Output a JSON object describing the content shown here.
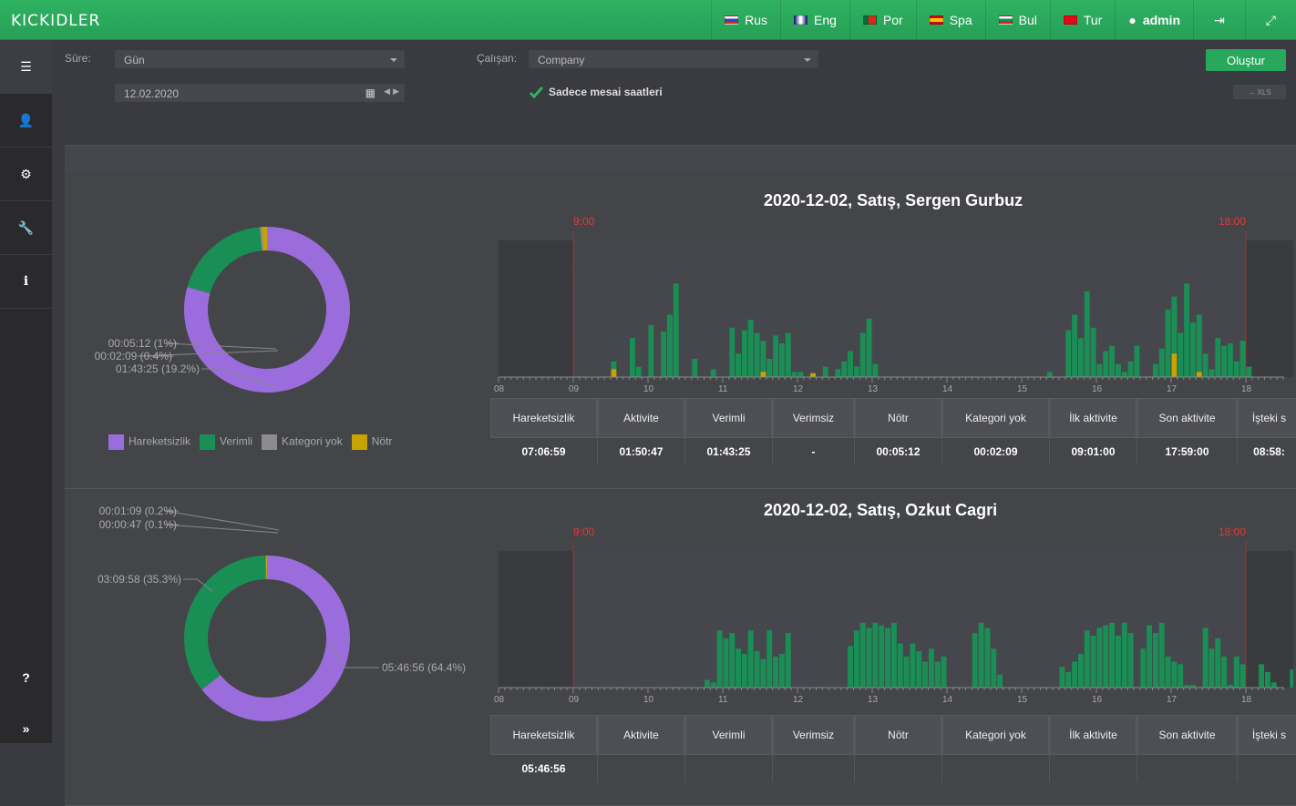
{
  "app": {
    "logo": "KICKIDLER"
  },
  "nav": {
    "languages": [
      {
        "label": "Rus",
        "flag": "ru"
      },
      {
        "label": "Eng",
        "flag": "gb"
      },
      {
        "label": "Por",
        "flag": "pt"
      },
      {
        "label": "Spa",
        "flag": "es"
      },
      {
        "label": "Bul",
        "flag": "bg"
      },
      {
        "label": "Tur",
        "flag": "tr"
      }
    ],
    "user": "admin",
    "logout_icon": "logout-icon",
    "fullscreen_icon": "expand-icon"
  },
  "sidebar": {
    "items": [
      {
        "icon": "list-icon",
        "glyph": "☰"
      },
      {
        "icon": "user-icon",
        "glyph": "👤"
      },
      {
        "icon": "gears-icon",
        "glyph": "⚙"
      },
      {
        "icon": "wrench-icon",
        "glyph": "🔧"
      },
      {
        "icon": "info-icon",
        "glyph": "i"
      }
    ],
    "bottom": [
      {
        "icon": "help-icon",
        "glyph": "?"
      },
      {
        "icon": "expand-sidebar-icon",
        "glyph": "»"
      }
    ]
  },
  "filters": {
    "period_label": "Süre:",
    "period_value": "Gün",
    "date_value": "12.02.2020",
    "employee_label": "Çalışan:",
    "employee_value": "Company",
    "work_hours_only": "Sadece mesai saatleri",
    "create_button": "Oluştur",
    "xls_button": "→ XLS"
  },
  "colors": {
    "idle": "#9b6ddc",
    "productive": "#1a8f55",
    "no_category": "#8c8c8c",
    "neutral": "#c9a400",
    "marker": "#e53935"
  },
  "legend": [
    {
      "label": "Hareketsizlik",
      "color": "#9b6ddc"
    },
    {
      "label": "Verimli",
      "color": "#1a8f55"
    },
    {
      "label": "Kategori yok",
      "color": "#8c8c8c"
    },
    {
      "label": "Nötr",
      "color": "#c9a400"
    }
  ],
  "stat_headers": [
    "Hareketsizlik",
    "Aktivite",
    "Verimli",
    "Verimsiz",
    "Nötr",
    "Kategori yok",
    "İlk aktivite",
    "Son aktivite",
    "İşteki s"
  ],
  "timeline": {
    "ticks": [
      "08",
      "09",
      "10",
      "11",
      "12",
      "13",
      "14",
      "15",
      "16",
      "17",
      "18"
    ],
    "start_marker": "9:00",
    "end_marker": "18:00"
  },
  "reports": [
    {
      "title": "2020-12-02, Satış, Sergen Gurbuz",
      "donut": {
        "slices": [
          {
            "label": "07:06:59 (79.4%)",
            "pct": 79.4,
            "color": "#9b6ddc"
          },
          {
            "label": "01:43:25 (19.2%)",
            "pct": 19.2,
            "color": "#1a8f55"
          },
          {
            "label": "00:02:09 (0.4%)",
            "pct": 0.4,
            "color": "#8c8c8c"
          },
          {
            "label": "00:05:12 (1%)",
            "pct": 1.0,
            "color": "#c9a400"
          }
        ]
      },
      "stats": [
        "07:06:59",
        "01:50:47",
        "01:43:25",
        "-",
        "00:05:12",
        "00:02:09",
        "09:01:00",
        "17:59:00",
        "08:58:"
      ],
      "bars": [
        0,
        0,
        0,
        0,
        0,
        0,
        0,
        0,
        0,
        0,
        0,
        0,
        0,
        0,
        0,
        0,
        0,
        0,
        0.12,
        0,
        0,
        0.3,
        0.08,
        0,
        0.4,
        0,
        0.35,
        0.48,
        0.72,
        0,
        0,
        0.14,
        0,
        0,
        0.06,
        0,
        0,
        0.38,
        0.18,
        0.36,
        0.44,
        0.34,
        0.28,
        0.14,
        0.32,
        0.26,
        0.34,
        0.04,
        0.04,
        0,
        0.02,
        0,
        0.08,
        0,
        0.06,
        0.12,
        0.2,
        0.08,
        0.34,
        0.45,
        0.1,
        0,
        0,
        0,
        0,
        0,
        0,
        0,
        0,
        0,
        0,
        0,
        0,
        0,
        0,
        0,
        0,
        0,
        0,
        0,
        0,
        0,
        0,
        0,
        0,
        0,
        0,
        0,
        0.04,
        0,
        0,
        0.36,
        0.48,
        0.3,
        0.66,
        0.38,
        0.1,
        0.2,
        0.24,
        0.1,
        0.04,
        0.12,
        0.24,
        0,
        0,
        0.1,
        0.22,
        0.52,
        0.62,
        0.34,
        0.72,
        0.42,
        0.48,
        0.18,
        0.06,
        0.3,
        0.24,
        0.26,
        0.12,
        0.28,
        0.08,
        0,
        0,
        0,
        0,
        0,
        0,
        0,
        0,
        0.32,
        0.38,
        0.24,
        0.16,
        0.06
      ],
      "accents": {
        "18": 0.06,
        "42": 0.04,
        "50": 0.03,
        "89": 0.03,
        "103": 0.04,
        "108": 0.18,
        "112": 0.04,
        "124": 0.04,
        "133": 0.06
      }
    },
    {
      "title": "2020-12-02, Satış, Ozkut  Cagri",
      "donut": {
        "slices": [
          {
            "label": "05:46:56 (64.4%)",
            "pct": 64.4,
            "color": "#9b6ddc"
          },
          {
            "label": "03:09:58 (35.3%)",
            "pct": 35.3,
            "color": "#1a8f55"
          },
          {
            "label": "00:00:47 (0.1%)",
            "pct": 0.1,
            "color": "#8c8c8c"
          },
          {
            "label": "00:01:09 (0.2%)",
            "pct": 0.2,
            "color": "#c9a400"
          }
        ]
      },
      "stats": [
        "05:46:56",
        "",
        "",
        "",
        "",
        "",
        "",
        "",
        ""
      ],
      "bars": [
        0,
        0,
        0,
        0,
        0,
        0,
        0,
        0,
        0,
        0,
        0,
        0,
        0,
        0,
        0,
        0,
        0,
        0,
        0,
        0,
        0,
        0,
        0,
        0,
        0,
        0,
        0,
        0,
        0,
        0,
        0,
        0,
        0,
        0.06,
        0.04,
        0.44,
        0.38,
        0.42,
        0.3,
        0.26,
        0.44,
        0.28,
        0.22,
        0.44,
        0.24,
        0.26,
        0.42,
        0,
        0,
        0,
        0,
        0,
        0,
        0,
        0,
        0,
        0.32,
        0.44,
        0.5,
        0.46,
        0.5,
        0.48,
        0.46,
        0.5,
        0.34,
        0.24,
        0.34,
        0.28,
        0.2,
        0.3,
        0.2,
        0.24,
        0,
        0,
        0,
        0,
        0.42,
        0.5,
        0.46,
        0.3,
        0.1,
        0,
        0,
        0,
        0,
        0,
        0,
        0,
        0,
        0,
        0.16,
        0.12,
        0.2,
        0.26,
        0.44,
        0.4,
        0.46,
        0.48,
        0.5,
        0.4,
        0.5,
        0.42,
        0,
        0.3,
        0.48,
        0.42,
        0.5,
        0.24,
        0.2,
        0.18,
        0.02,
        0.02,
        0,
        0.46,
        0.3,
        0.38,
        0.24,
        0.02,
        0.24,
        0.18,
        0,
        0,
        0.18,
        0.12,
        0.04,
        0,
        0,
        0.14,
        0.06
      ]
    }
  ]
}
